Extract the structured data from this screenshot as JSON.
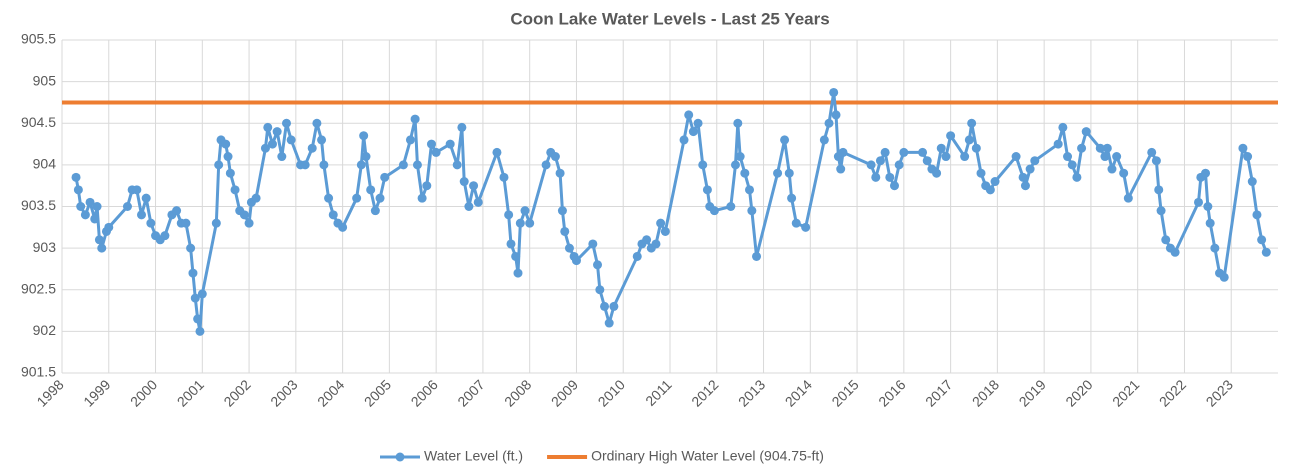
{
  "chart_data": {
    "type": "line",
    "title": "Coon Lake Water Levels - Last 25 Years",
    "xlim": [
      1998,
      2024
    ],
    "xticks": [
      1998,
      1999,
      2000,
      2001,
      2002,
      2003,
      2004,
      2005,
      2006,
      2007,
      2008,
      2009,
      2010,
      2011,
      2012,
      2013,
      2014,
      2015,
      2016,
      2017,
      2018,
      2019,
      2020,
      2021,
      2022,
      2023
    ],
    "ylim": [
      901.5,
      905.5
    ],
    "yticks": [
      901.5,
      902,
      902.5,
      903,
      903.5,
      904,
      904.5,
      905,
      905.5
    ],
    "grid": true,
    "legend": "bottom",
    "series": [
      {
        "name": "Water Level (ft.)",
        "color": "#5b9bd5",
        "markers": true,
        "x": [
          1998.3,
          1998.35,
          1998.4,
          1998.5,
          1998.6,
          1998.7,
          1998.75,
          1998.8,
          1998.85,
          1998.95,
          1999.0,
          1999.4,
          1999.5,
          1999.6,
          1999.7,
          1999.8,
          1999.9,
          2000.0,
          2000.1,
          2000.2,
          2000.35,
          2000.45,
          2000.55,
          2000.65,
          2000.75,
          2000.8,
          2000.85,
          2000.9,
          2000.95,
          2001.0,
          2001.3,
          2001.35,
          2001.4,
          2001.5,
          2001.55,
          2001.6,
          2001.7,
          2001.8,
          2001.9,
          2002.0,
          2002.05,
          2002.15,
          2002.35,
          2002.4,
          2002.5,
          2002.6,
          2002.7,
          2002.8,
          2002.9,
          2003.1,
          2003.2,
          2003.35,
          2003.45,
          2003.55,
          2003.6,
          2003.7,
          2003.8,
          2003.9,
          2004.0,
          2004.3,
          2004.4,
          2004.45,
          2004.5,
          2004.6,
          2004.7,
          2004.8,
          2004.9,
          2005.3,
          2005.45,
          2005.55,
          2005.6,
          2005.7,
          2005.8,
          2005.9,
          2006.0,
          2006.3,
          2006.45,
          2006.55,
          2006.6,
          2006.7,
          2006.8,
          2006.9,
          2007.3,
          2007.45,
          2007.55,
          2007.6,
          2007.7,
          2007.75,
          2007.8,
          2007.9,
          2008.0,
          2008.35,
          2008.45,
          2008.55,
          2008.65,
          2008.7,
          2008.75,
          2008.85,
          2008.95,
          2009.0,
          2009.35,
          2009.45,
          2009.5,
          2009.6,
          2009.7,
          2009.8,
          2010.3,
          2010.4,
          2010.5,
          2010.6,
          2010.7,
          2010.8,
          2010.9,
          2011.3,
          2011.4,
          2011.5,
          2011.6,
          2011.7,
          2011.8,
          2011.85,
          2011.95,
          2012.3,
          2012.4,
          2012.45,
          2012.5,
          2012.6,
          2012.7,
          2012.75,
          2012.85,
          2013.3,
          2013.45,
          2013.55,
          2013.6,
          2013.7,
          2013.9,
          2014.3,
          2014.4,
          2014.5,
          2014.55,
          2014.6,
          2014.65,
          2014.7,
          2015.3,
          2015.4,
          2015.5,
          2015.6,
          2015.7,
          2015.8,
          2015.9,
          2016.0,
          2016.4,
          2016.5,
          2016.6,
          2016.7,
          2016.8,
          2016.9,
          2017.0,
          2017.3,
          2017.4,
          2017.45,
          2017.55,
          2017.65,
          2017.75,
          2017.85,
          2017.95,
          2018.4,
          2018.55,
          2018.6,
          2018.7,
          2018.8,
          2019.3,
          2019.4,
          2019.5,
          2019.6,
          2019.7,
          2019.8,
          2019.9,
          2020.2,
          2020.3,
          2020.35,
          2020.45,
          2020.55,
          2020.7,
          2020.8,
          2021.3,
          2021.4,
          2021.45,
          2021.5,
          2021.6,
          2021.7,
          2021.8,
          2022.3,
          2022.35,
          2022.45,
          2022.5,
          2022.55,
          2022.65,
          2022.75,
          2022.85,
          2023.25,
          2023.35,
          2023.45,
          2023.55,
          2023.65,
          2023.75
        ],
        "values": [
          903.85,
          903.7,
          903.5,
          903.4,
          903.55,
          903.35,
          903.5,
          903.1,
          903.0,
          903.2,
          903.25,
          903.5,
          903.7,
          903.7,
          903.4,
          903.6,
          903.3,
          903.15,
          903.1,
          903.15,
          903.4,
          903.45,
          903.3,
          903.3,
          903.0,
          902.7,
          902.4,
          902.15,
          902.0,
          902.45,
          903.3,
          904.0,
          904.3,
          904.25,
          904.1,
          903.9,
          903.7,
          903.45,
          903.4,
          903.3,
          903.55,
          903.6,
          904.2,
          904.45,
          904.25,
          904.4,
          904.1,
          904.5,
          904.3,
          904.0,
          904.0,
          904.2,
          904.5,
          904.3,
          904.0,
          903.6,
          903.4,
          903.3,
          903.25,
          903.6,
          904.0,
          904.35,
          904.1,
          903.7,
          903.45,
          903.6,
          903.85,
          904.0,
          904.3,
          904.55,
          904.0,
          903.6,
          903.75,
          904.25,
          904.15,
          904.25,
          904.0,
          904.45,
          903.8,
          903.5,
          903.75,
          903.55,
          904.15,
          903.85,
          903.4,
          903.05,
          902.9,
          902.7,
          903.3,
          903.45,
          903.3,
          904.0,
          904.15,
          904.1,
          903.9,
          903.45,
          903.2,
          903.0,
          902.9,
          902.85,
          903.05,
          902.8,
          902.5,
          902.3,
          902.1,
          902.3,
          902.9,
          903.05,
          903.1,
          903.0,
          903.05,
          903.3,
          903.2,
          904.3,
          904.6,
          904.4,
          904.5,
          904.0,
          903.7,
          903.5,
          903.45,
          903.5,
          904.0,
          904.5,
          904.1,
          903.9,
          903.7,
          903.45,
          902.9,
          903.9,
          904.3,
          903.9,
          903.6,
          903.3,
          903.25,
          904.3,
          904.5,
          904.87,
          904.6,
          904.1,
          903.95,
          904.15,
          904.0,
          903.85,
          904.05,
          904.15,
          903.85,
          903.75,
          904.0,
          904.15,
          904.15,
          904.05,
          903.95,
          903.9,
          904.2,
          904.1,
          904.35,
          904.1,
          904.3,
          904.5,
          904.2,
          903.9,
          903.75,
          903.7,
          903.8,
          904.1,
          903.85,
          903.75,
          903.95,
          904.05,
          904.25,
          904.45,
          904.1,
          904.0,
          903.85,
          904.2,
          904.4,
          904.2,
          904.1,
          904.2,
          903.95,
          904.1,
          903.9,
          903.6,
          904.15,
          904.05,
          903.7,
          903.45,
          903.1,
          903.0,
          902.95,
          903.55,
          903.85,
          903.9,
          903.5,
          903.3,
          903.0,
          902.7,
          902.65,
          904.2,
          904.1,
          903.8,
          903.4,
          903.1,
          902.95
        ]
      },
      {
        "name": "Ordinary High Water Level (904.75-ft)",
        "color": "#ed7d31",
        "markers": false,
        "x": [
          1998,
          2024
        ],
        "values": [
          904.75,
          904.75
        ]
      }
    ]
  }
}
